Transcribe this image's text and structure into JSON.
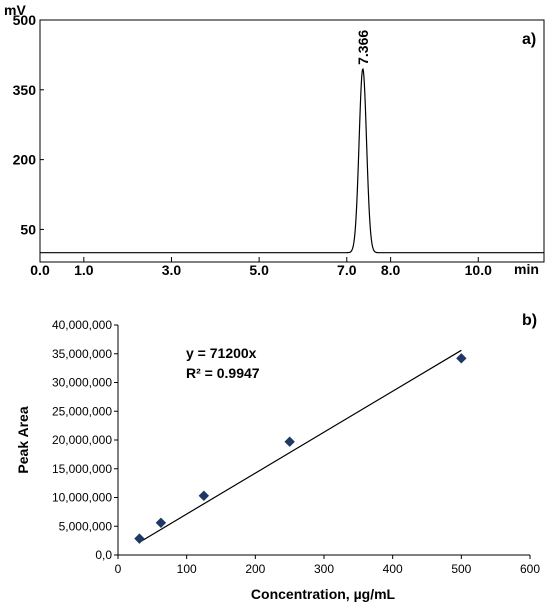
{
  "chart_data": [
    {
      "type": "line",
      "panel_label": "a)",
      "y_unit": "mV",
      "x_unit": "min",
      "x_ticks": [
        "0.0",
        "1.0",
        "3.0",
        "5.0",
        "7.0",
        "8.0",
        "10.0"
      ],
      "y_ticks": [
        "50",
        "200",
        "350",
        "500"
      ],
      "xlim": [
        0,
        11.5
      ],
      "ylim": [
        -20,
        500
      ],
      "grid": false,
      "peak": {
        "retention_time": 7.366,
        "label": "7.366",
        "height": 395,
        "width_sigma": 0.085
      },
      "baseline": 0
    },
    {
      "type": "scatter",
      "panel_label": "b)",
      "xlabel": "Concentration, µg/mL",
      "ylabel": "Peak Area",
      "xlim": [
        0,
        600
      ],
      "ylim": [
        0,
        40000000
      ],
      "x_ticks": [
        "0",
        "100",
        "200",
        "300",
        "400",
        "500",
        "600"
      ],
      "y_ticks": [
        "0,0",
        "5,000,000",
        "10,000,000",
        "15,000,000",
        "20,000,000",
        "25,000,000",
        "30,000,000",
        "35,000,000",
        "40,000,000"
      ],
      "grid": false,
      "points": [
        {
          "x": 31.25,
          "y": 2850000
        },
        {
          "x": 62.5,
          "y": 5600000
        },
        {
          "x": 125,
          "y": 10300000
        },
        {
          "x": 250,
          "y": 19700000
        },
        {
          "x": 500,
          "y": 34200000
        }
      ],
      "trendline": {
        "slope": 71200,
        "intercept": 0,
        "x_range": [
          31.25,
          500
        ]
      },
      "equation": "y = 71200x",
      "r_squared": "R² = 0.9947",
      "marker_color": "#1f3864"
    }
  ]
}
